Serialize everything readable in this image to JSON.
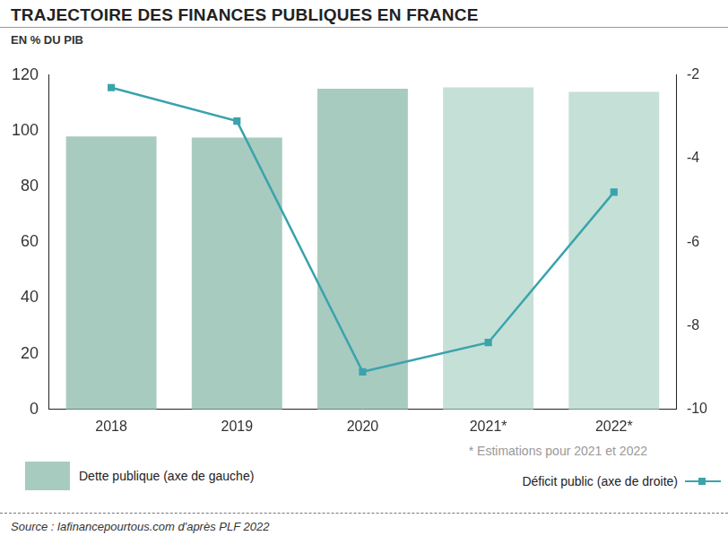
{
  "chart_data": {
    "type": "bar",
    "title": "TRAJECTOIRE DES FINANCES PUBLIQUES EN FRANCE",
    "subtitle": "EN % DU PIB",
    "categories": [
      "2018",
      "2019",
      "2020",
      "2021*",
      "2022*"
    ],
    "series": [
      {
        "name": "Dette publique (axe de gauche)",
        "type": "bar",
        "color": "#a8cbbf",
        "colors": [
          "#a8cbbf",
          "#a8cbbf",
          "#a8cbbf",
          "#c5e0d6",
          "#c5e0d6"
        ],
        "values": [
          98,
          97.6,
          115.1,
          115.6,
          114
        ]
      },
      {
        "name": "Déficit public (axe de droite)",
        "type": "line",
        "color": "#3aa3ad",
        "marker": "square",
        "line_style": "solid",
        "axis": "y2",
        "values": [
          -2.3,
          -3.1,
          -9.1,
          -8.4,
          -4.8
        ]
      }
    ],
    "ylim": [
      0,
      120
    ],
    "yticks": [
      0,
      20,
      40,
      60,
      80,
      100,
      120
    ],
    "y2lim": [
      -10,
      -2
    ],
    "y2ticks": [
      -2,
      -4,
      -6,
      -8,
      -10
    ],
    "grid": false,
    "legend": "bottom",
    "annotations": [
      "* Estimations pour 2021 et 2022"
    ],
    "source": "Source : lafinancepourtous.com d'après PLF 2022"
  }
}
